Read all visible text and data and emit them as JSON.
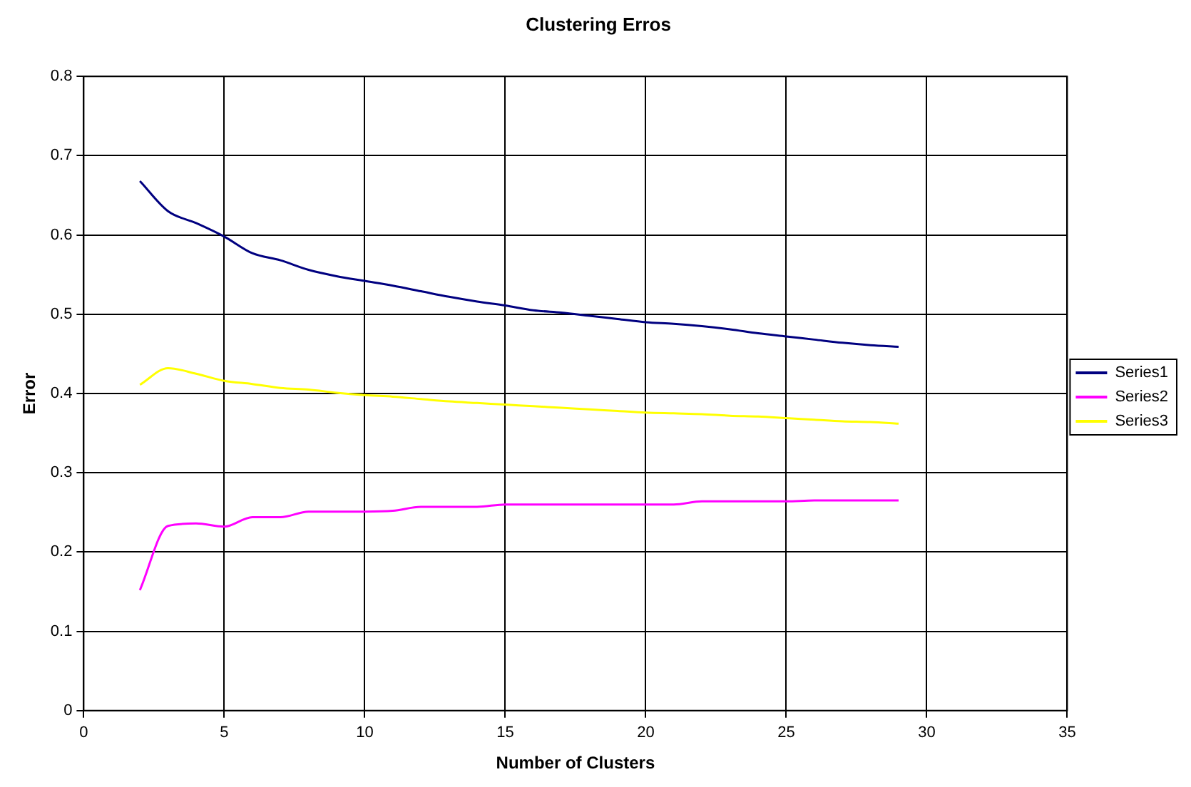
{
  "chart_data": {
    "type": "line",
    "title": "Clustering Erros",
    "xlabel": "Number of Clusters",
    "ylabel": "Error",
    "x": [
      2,
      3,
      4,
      5,
      6,
      7,
      8,
      9,
      10,
      11,
      12,
      13,
      14,
      15,
      16,
      17,
      18,
      19,
      20,
      21,
      22,
      23,
      24,
      25,
      26,
      27,
      28,
      29
    ],
    "series": [
      {
        "name": "Series1",
        "color": "#000080",
        "values": [
          0.668,
          0.63,
          0.615,
          0.598,
          0.577,
          0.568,
          0.556,
          0.548,
          0.542,
          0.536,
          0.529,
          0.522,
          0.516,
          0.511,
          0.505,
          0.502,
          0.498,
          0.494,
          0.49,
          0.488,
          0.485,
          0.481,
          0.476,
          0.472,
          0.468,
          0.464,
          0.461,
          0.459
        ]
      },
      {
        "name": "Series2",
        "color": "#ff00ff",
        "values": [
          0.152,
          0.233,
          0.236,
          0.232,
          0.244,
          0.244,
          0.251,
          0.251,
          0.251,
          0.252,
          0.257,
          0.257,
          0.257,
          0.26,
          0.26,
          0.26,
          0.26,
          0.26,
          0.26,
          0.26,
          0.264,
          0.264,
          0.264,
          0.264,
          0.265,
          0.265,
          0.265,
          0.265
        ]
      },
      {
        "name": "Series3",
        "color": "#ffff00",
        "values": [
          0.411,
          0.432,
          0.425,
          0.416,
          0.412,
          0.407,
          0.405,
          0.401,
          0.398,
          0.396,
          0.393,
          0.39,
          0.388,
          0.386,
          0.384,
          0.382,
          0.38,
          0.378,
          0.376,
          0.375,
          0.374,
          0.372,
          0.371,
          0.369,
          0.367,
          0.365,
          0.364,
          0.362
        ]
      }
    ],
    "xlim": [
      0,
      35
    ],
    "xticks": [
      0,
      5,
      10,
      15,
      20,
      25,
      30,
      35
    ],
    "ylim": [
      0,
      0.8
    ],
    "yticks": [
      0,
      0.1,
      0.2,
      0.3,
      0.4,
      0.5,
      0.6,
      0.7,
      0.8
    ],
    "grid": true,
    "legend": "right",
    "marker": "none",
    "line_style": "solid"
  }
}
